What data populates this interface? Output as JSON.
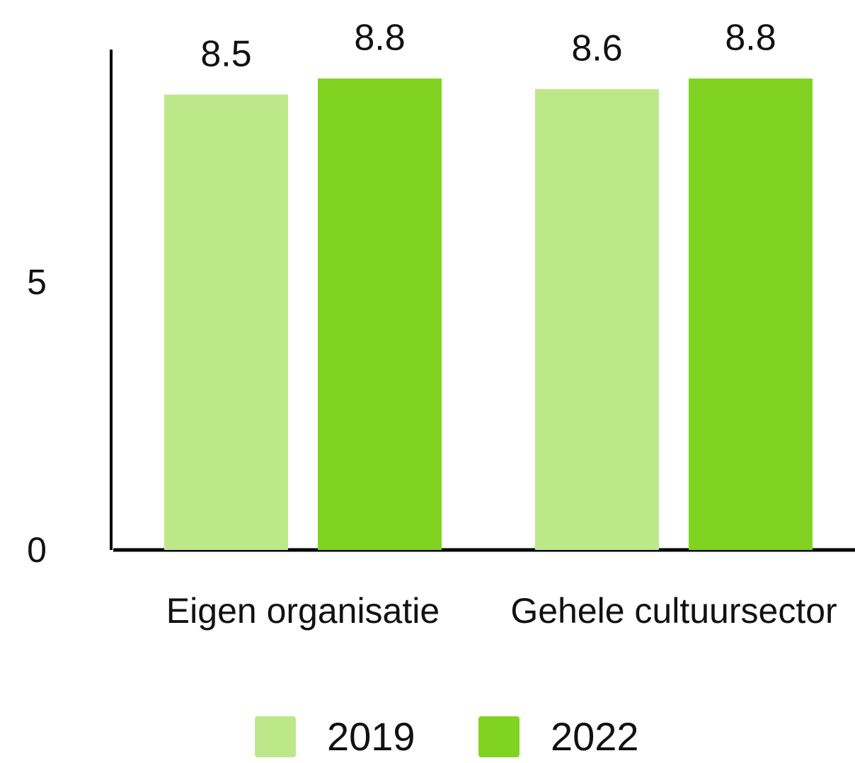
{
  "chart_data": {
    "type": "bar",
    "categories": [
      "Eigen organisatie",
      "Gehele cultuursector"
    ],
    "series": [
      {
        "name": "2019",
        "color": "#bde88a",
        "values": [
          8.5,
          8.6
        ]
      },
      {
        "name": "2022",
        "color": "#80d421",
        "values": [
          8.8,
          8.8
        ]
      }
    ],
    "ylim": [
      0,
      9.34
    ],
    "yticks": [
      0,
      5
    ],
    "grid": false,
    "legend": "bottom"
  }
}
